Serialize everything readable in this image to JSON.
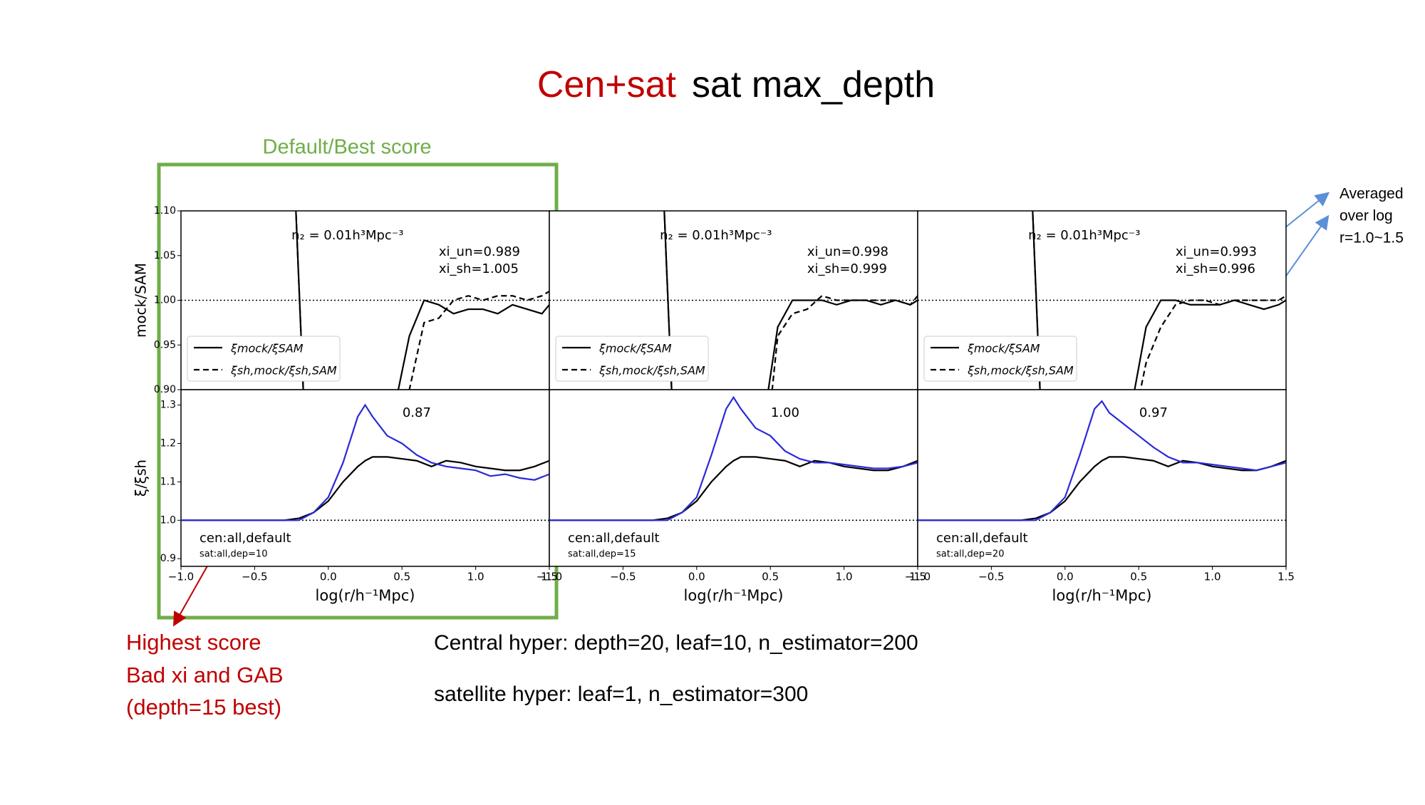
{
  "slide": {
    "title_red": "Cen+sat",
    "title_black": "sat max_depth",
    "box_label": "Default/Best score",
    "red_notes": [
      "Highest score",
      "Bad xi and GAB",
      "(depth=15 best)"
    ],
    "hyper_lines": [
      "Central hyper: depth=20, leaf=10, n_estimator=200",
      "satellite hyper: leaf=1, n_estimator=300"
    ],
    "blue_note": [
      "Averaged",
      "over log",
      "r=1.0~1.5"
    ]
  },
  "chart_data": [
    {
      "type": "line",
      "ylabel": "mock/SAM",
      "xlim": [
        -1.0,
        1.5
      ],
      "ylim": [
        0.9,
        1.1
      ],
      "yticks": [
        {
          "value": 0.9,
          "label": "0.90"
        },
        0.95,
        {
          "value": 1.0,
          "label": "1.00"
        },
        1.05,
        {
          "value": 1.1,
          "label": "1.10"
        }
      ],
      "hline": 1,
      "density_label": "n₂ = 0.01h³Mpc⁻³",
      "xi_un": "xi_un=0.989",
      "xi_sh": "xi_sh=1.005",
      "x": [
        -0.25,
        -0.15,
        0.45,
        0.55,
        0.65,
        0.75,
        0.85,
        0.95,
        1.05,
        1.15,
        1.25,
        1.35,
        1.45,
        1.5
      ],
      "series": [
        {
          "name": "ξmock/ξSAM",
          "color": "#000000",
          "dash": false,
          "values": [
            1.22,
            0.82,
            0.88,
            0.96,
            1.0,
            0.995,
            0.985,
            0.99,
            0.99,
            0.985,
            0.995,
            0.99,
            0.985,
            0.995
          ]
        },
        {
          "name": "ξsh,mock/ξsh,SAM",
          "color": "#000000",
          "dash": true,
          "values": [
            1.22,
            0.82,
            0.82,
            0.9,
            0.975,
            0.98,
            1.0,
            1.005,
            1.0,
            1.005,
            1.005,
            1.0,
            1.005,
            1.01
          ]
        }
      ]
    },
    {
      "type": "line",
      "ylabel": "ξ/ξsh",
      "xlabel": "log(r/h⁻¹Mpc)",
      "xlim": [
        -1.0,
        1.5
      ],
      "ylim": [
        0.88,
        1.34
      ],
      "xticks": [
        {
          "value": -1.0,
          "label": "−1.0"
        },
        {
          "value": -0.5,
          "label": "−0.5"
        },
        {
          "value": 0.0,
          "label": "0.0"
        },
        0.5,
        {
          "value": 1.0,
          "label": "1.0"
        },
        1.5
      ],
      "yticks": [
        0.9,
        {
          "value": 1.0,
          "label": "1.0"
        },
        1.1,
        1.2,
        1.3
      ],
      "hline": 1,
      "score": "0.87",
      "cen_label": "cen:all,default",
      "sat_label": "sat:all,dep=10",
      "x": [
        -1.0,
        -0.5,
        -0.3,
        -0.2,
        -0.1,
        0.0,
        0.1,
        0.2,
        0.25,
        0.3,
        0.4,
        0.5,
        0.6,
        0.7,
        0.8,
        0.9,
        1.0,
        1.1,
        1.2,
        1.3,
        1.4,
        1.5
      ],
      "series": [
        {
          "color": "#000000",
          "values": [
            1.0,
            1.0,
            1.0,
            1.005,
            1.02,
            1.05,
            1.1,
            1.14,
            1.155,
            1.165,
            1.165,
            1.16,
            1.155,
            1.14,
            1.155,
            1.15,
            1.14,
            1.135,
            1.13,
            1.13,
            1.14,
            1.155
          ]
        },
        {
          "color": "#2a2ad8",
          "values": [
            1.0,
            1.0,
            1.0,
            1.0,
            1.02,
            1.06,
            1.15,
            1.27,
            1.3,
            1.27,
            1.22,
            1.2,
            1.17,
            1.15,
            1.14,
            1.135,
            1.13,
            1.115,
            1.12,
            1.11,
            1.105,
            1.12
          ]
        }
      ]
    },
    {
      "type": "line",
      "xlim": [
        -1.0,
        1.5
      ],
      "ylim": [
        0.9,
        1.1
      ],
      "hline": 1,
      "density_label": "n₂ = 0.01h³Mpc⁻³",
      "xi_un": "xi_un=0.998",
      "xi_sh": "xi_sh=0.999",
      "x": [
        -0.25,
        -0.15,
        0.45,
        0.55,
        0.65,
        0.75,
        0.85,
        0.95,
        1.05,
        1.15,
        1.25,
        1.35,
        1.45,
        1.5
      ],
      "series": [
        {
          "name": "ξmock/ξSAM",
          "color": "#000000",
          "dash": false,
          "values": [
            1.22,
            0.82,
            0.86,
            0.97,
            1.0,
            1.0,
            1.0,
            0.995,
            1.0,
            1.0,
            0.995,
            1.0,
            0.995,
            1.0
          ]
        },
        {
          "name": "ξsh,mock/ξsh,SAM",
          "color": "#000000",
          "dash": true,
          "values": [
            1.22,
            0.82,
            0.8,
            0.96,
            0.985,
            0.99,
            1.005,
            1.0,
            1.0,
            1.0,
            1.0,
            1.0,
            0.995,
            1.005
          ]
        }
      ]
    },
    {
      "type": "line",
      "xlabel": "log(r/h⁻¹Mpc)",
      "xlim": [
        -1.0,
        1.5
      ],
      "ylim": [
        0.88,
        1.34
      ],
      "xticks": [
        {
          "value": -1.0,
          "label": "−1.0"
        },
        {
          "value": -0.5,
          "label": "−0.5"
        },
        {
          "value": 0.0,
          "label": "0.0"
        },
        0.5,
        {
          "value": 1.0,
          "label": "1.0"
        },
        1.5
      ],
      "hline": 1,
      "score": "1.00",
      "cen_label": "cen:all,default",
      "sat_label": "sat:all,dep=15",
      "x": [
        -1.0,
        -0.5,
        -0.3,
        -0.2,
        -0.1,
        0.0,
        0.1,
        0.2,
        0.25,
        0.3,
        0.4,
        0.5,
        0.6,
        0.7,
        0.8,
        0.9,
        1.0,
        1.1,
        1.2,
        1.3,
        1.4,
        1.5
      ],
      "series": [
        {
          "color": "#000000",
          "values": [
            1.0,
            1.0,
            1.0,
            1.005,
            1.02,
            1.05,
            1.1,
            1.14,
            1.155,
            1.165,
            1.165,
            1.16,
            1.155,
            1.14,
            1.155,
            1.15,
            1.14,
            1.135,
            1.13,
            1.13,
            1.14,
            1.155
          ]
        },
        {
          "color": "#2a2ad8",
          "values": [
            1.0,
            1.0,
            1.0,
            1.0,
            1.02,
            1.06,
            1.17,
            1.29,
            1.32,
            1.29,
            1.24,
            1.22,
            1.18,
            1.16,
            1.15,
            1.15,
            1.145,
            1.14,
            1.135,
            1.135,
            1.14,
            1.15
          ]
        }
      ]
    },
    {
      "type": "line",
      "xlim": [
        -1.0,
        1.5
      ],
      "ylim": [
        0.9,
        1.1
      ],
      "hline": 1,
      "density_label": "n₂ = 0.01h³Mpc⁻³",
      "xi_un": "xi_un=0.993",
      "xi_sh": "xi_sh=0.996",
      "x": [
        -0.25,
        -0.15,
        0.45,
        0.55,
        0.65,
        0.75,
        0.85,
        0.95,
        1.05,
        1.15,
        1.25,
        1.35,
        1.45,
        1.5
      ],
      "series": [
        {
          "name": "ξmock/ξSAM",
          "color": "#000000",
          "dash": false,
          "values": [
            1.22,
            0.82,
            0.88,
            0.97,
            1.0,
            1.0,
            0.995,
            0.995,
            0.995,
            1.0,
            0.995,
            0.99,
            0.995,
            1.0
          ]
        },
        {
          "name": "ξsh,mock/ξsh,SAM",
          "color": "#000000",
          "dash": true,
          "values": [
            1.22,
            0.82,
            0.85,
            0.93,
            0.97,
            0.995,
            1.0,
            1.0,
            0.995,
            1.0,
            1.0,
            1.0,
            1.0,
            1.005
          ]
        }
      ]
    },
    {
      "type": "line",
      "xlabel": "log(r/h⁻¹Mpc)",
      "xlim": [
        -1.0,
        1.5
      ],
      "ylim": [
        0.88,
        1.34
      ],
      "xticks": [
        {
          "value": -1.0,
          "label": "−1.0"
        },
        {
          "value": -0.5,
          "label": "−0.5"
        },
        {
          "value": 0.0,
          "label": "0.0"
        },
        0.5,
        {
          "value": 1.0,
          "label": "1.0"
        },
        1.5
      ],
      "hline": 1,
      "score": "0.97",
      "cen_label": "cen:all,default",
      "sat_label": "sat:all,dep=20",
      "x": [
        -1.0,
        -0.5,
        -0.3,
        -0.2,
        -0.1,
        0.0,
        0.1,
        0.2,
        0.25,
        0.3,
        0.4,
        0.5,
        0.6,
        0.7,
        0.8,
        0.9,
        1.0,
        1.1,
        1.2,
        1.3,
        1.4,
        1.5
      ],
      "series": [
        {
          "color": "#000000",
          "values": [
            1.0,
            1.0,
            1.0,
            1.005,
            1.02,
            1.05,
            1.1,
            1.14,
            1.155,
            1.165,
            1.165,
            1.16,
            1.155,
            1.14,
            1.155,
            1.15,
            1.14,
            1.135,
            1.13,
            1.13,
            1.14,
            1.155
          ]
        },
        {
          "color": "#2a2ad8",
          "values": [
            1.0,
            1.0,
            1.0,
            1.0,
            1.02,
            1.06,
            1.17,
            1.29,
            1.31,
            1.28,
            1.25,
            1.22,
            1.19,
            1.165,
            1.15,
            1.15,
            1.145,
            1.14,
            1.135,
            1.13,
            1.14,
            1.15
          ]
        }
      ]
    }
  ]
}
